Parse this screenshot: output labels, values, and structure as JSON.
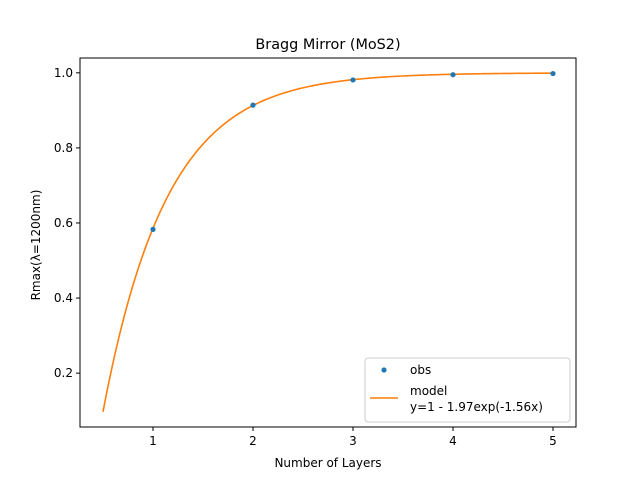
{
  "chart_data": {
    "type": "scatter",
    "title": "Bragg Mirror (MoS2)",
    "xlabel": "Number of Layers",
    "ylabel": "Rmax(λ=1200nm)",
    "xlim": [
      0.27,
      5.23
    ],
    "ylim": [
      0.0565,
      1.0395
    ],
    "xticks": [
      1,
      2,
      3,
      4,
      5
    ],
    "yticks": [
      0.2,
      0.4,
      0.6,
      0.8,
      1.0
    ],
    "xtick_labels": [
      "1",
      "2",
      "3",
      "4",
      "5"
    ],
    "ytick_labels": [
      "0.2",
      "0.4",
      "0.6",
      "0.8",
      "1.0"
    ],
    "grid": false,
    "legend_position": "bottom-right",
    "series": [
      {
        "name": "obs",
        "kind": "points",
        "color": "#1f77b4",
        "x": [
          1,
          2,
          3,
          4,
          5
        ],
        "y": [
          0.583,
          0.914,
          0.981,
          0.995,
          0.998
        ]
      },
      {
        "name": "model",
        "label_line2": "y=1 - 1.97exp(-1.56x)",
        "kind": "line",
        "color": "#ff7f0e",
        "function": {
          "a": 1.97,
          "b": 1.56
        },
        "x_range": [
          0.5,
          5.0
        ]
      }
    ]
  }
}
